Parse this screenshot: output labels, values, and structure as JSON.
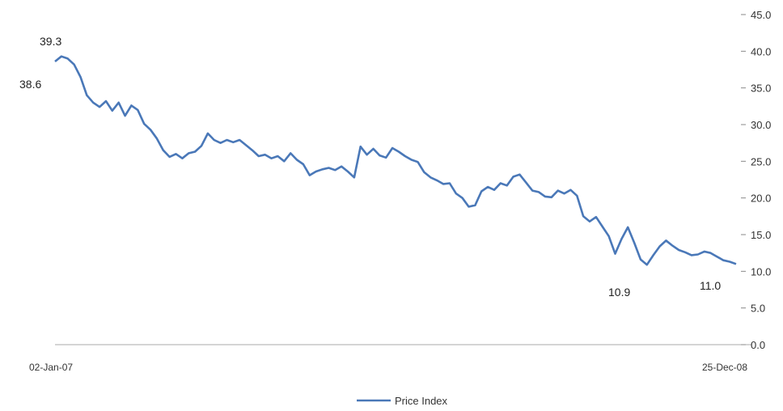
{
  "chart_data": {
    "type": "line",
    "series": [
      {
        "name": "Price Index",
        "color": "#4a78b8",
        "values": [
          38.6,
          39.3,
          39.0,
          38.2,
          36.5,
          34.0,
          33.0,
          32.4,
          33.2,
          31.9,
          33.0,
          31.2,
          32.6,
          32.0,
          30.1,
          29.3,
          28.1,
          26.5,
          25.6,
          26.0,
          25.4,
          26.1,
          26.3,
          27.1,
          28.8,
          27.9,
          27.5,
          27.9,
          27.6,
          27.9,
          27.2,
          26.5,
          25.7,
          25.9,
          25.4,
          25.7,
          25.0,
          26.1,
          25.2,
          24.6,
          23.1,
          23.6,
          23.9,
          24.1,
          23.8,
          24.3,
          23.6,
          22.8,
          27.0,
          25.9,
          26.7,
          25.8,
          25.5,
          26.8,
          26.3,
          25.7,
          25.2,
          24.9,
          23.5,
          22.8,
          22.4,
          21.9,
          22.0,
          20.6,
          20.0,
          18.8,
          19.0,
          20.9,
          21.5,
          21.1,
          22.0,
          21.7,
          22.9,
          23.2,
          22.1,
          21.0,
          20.8,
          20.2,
          20.1,
          21.0,
          20.6,
          21.1,
          20.3,
          17.5,
          16.8,
          17.4,
          16.1,
          14.8,
          12.4,
          14.4,
          16.0,
          13.9,
          11.6,
          10.9,
          12.2,
          13.4,
          14.2,
          13.5,
          12.9,
          12.6,
          12.2,
          12.3,
          12.7,
          12.5,
          12.0,
          11.5,
          11.3,
          11.0
        ],
        "first_label": "38.6",
        "max_label": "39.3",
        "min_label": "10.9",
        "last_label": "11.0"
      }
    ],
    "x_labels": {
      "start": "02-Jan-07",
      "end": "25-Dec-08"
    },
    "y_ticks": [
      "0.0",
      "5.0",
      "10.0",
      "15.0",
      "20.0",
      "25.0",
      "30.0",
      "35.0",
      "40.0",
      "45.0"
    ],
    "ylim": [
      0,
      45
    ],
    "y_axis_side": "right",
    "legend": {
      "position": "bottom-center",
      "label": "Price Index"
    }
  }
}
